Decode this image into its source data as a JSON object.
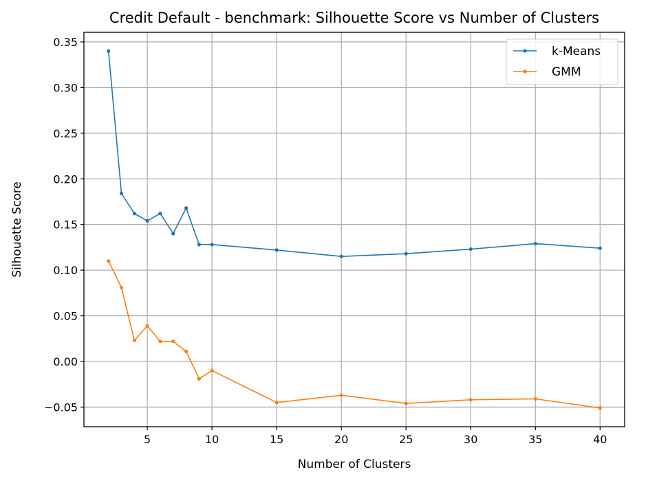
{
  "chart_data": {
    "type": "line",
    "title": "Credit Default - benchmark: Silhouette Score vs Number of Clusters",
    "xlabel": "Number of Clusters",
    "ylabel": "Silhouette Score",
    "xlim": [
      0.1,
      41.9
    ],
    "ylim": [
      -0.0715,
      0.3605
    ],
    "x_ticks": [
      5,
      10,
      15,
      20,
      25,
      30,
      35,
      40
    ],
    "x_tick_labels": [
      "5",
      "10",
      "15",
      "20",
      "25",
      "30",
      "35",
      "40"
    ],
    "y_ticks": [
      -0.05,
      0.0,
      0.05,
      0.1,
      0.15,
      0.2,
      0.25,
      0.3,
      0.35
    ],
    "y_tick_labels": [
      "−0.05",
      "0.00",
      "0.05",
      "0.10",
      "0.15",
      "0.20",
      "0.25",
      "0.30",
      "0.35"
    ],
    "grid": true,
    "legend_position": "top-right",
    "x": [
      2,
      3,
      4,
      5,
      6,
      7,
      8,
      9,
      10,
      15,
      20,
      25,
      30,
      35,
      40
    ],
    "series": [
      {
        "name": "k-Means",
        "color": "#1f77b4",
        "values": [
          0.34,
          0.184,
          0.162,
          0.154,
          0.162,
          0.14,
          0.168,
          0.128,
          0.128,
          0.122,
          0.115,
          0.118,
          0.123,
          0.129,
          0.124
        ]
      },
      {
        "name": "GMM",
        "color": "#ff7f0e",
        "values": [
          0.11,
          0.081,
          0.023,
          0.039,
          0.022,
          0.022,
          0.011,
          -0.019,
          -0.01,
          -0.045,
          -0.037,
          -0.046,
          -0.042,
          -0.041,
          -0.051
        ]
      }
    ]
  }
}
